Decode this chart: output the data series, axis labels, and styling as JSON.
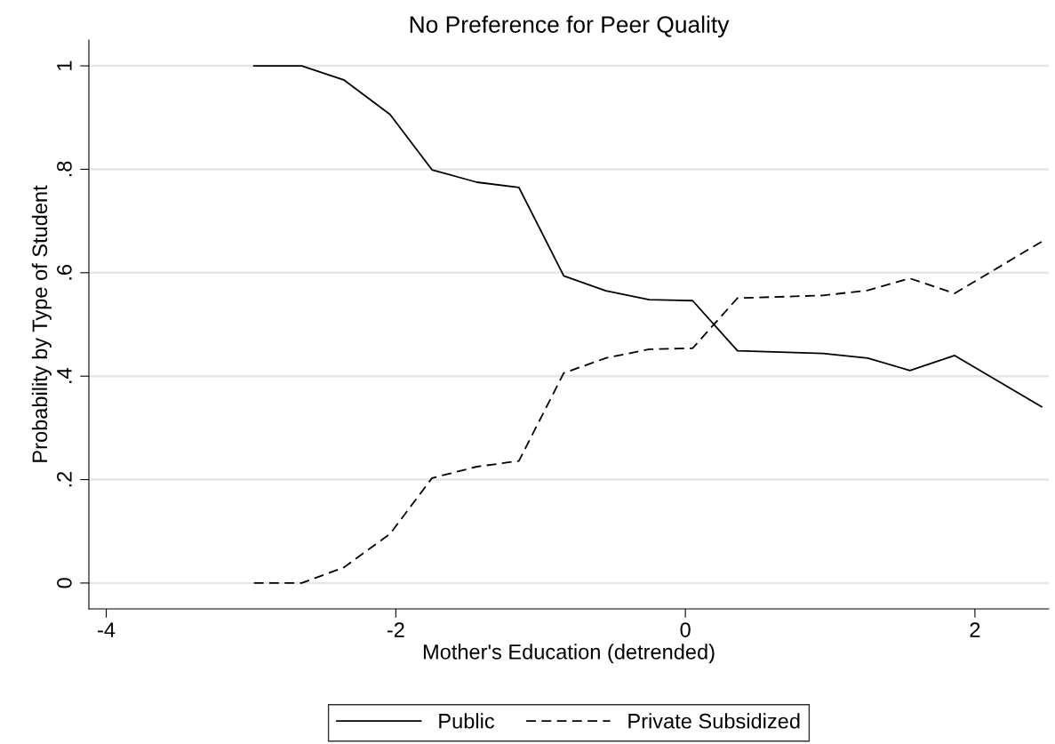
{
  "chart_data": {
    "type": "line",
    "title": "No Preference for Peer Quality",
    "xlabel": "Mother's Education (detrended)",
    "ylabel": "Probability by Type of Student",
    "x": [
      -2.98,
      -2.65,
      -2.36,
      -2.04,
      -1.75,
      -1.44,
      -1.15,
      -0.84,
      -0.55,
      -0.25,
      0.05,
      0.36,
      0.95,
      1.26,
      1.55,
      1.86,
      2.46
    ],
    "series": [
      {
        "name": "Public",
        "color": "#000000",
        "line_style": "solid",
        "values": [
          1,
          1,
          0.973,
          0.906,
          0.799,
          0.775,
          0.765,
          0.594,
          0.565,
          0.548,
          0.546,
          0.449,
          0.444,
          0.435,
          0.411,
          0.44,
          0.341
        ]
      },
      {
        "name": "Private Subsidized",
        "color": "#000000",
        "line_style": "dashed",
        "values": [
          0,
          0,
          0.03,
          0.095,
          0.203,
          0.225,
          0.236,
          0.406,
          0.435,
          0.452,
          0.454,
          0.551,
          0.556,
          0.566,
          0.589,
          0.56,
          0.66
        ]
      }
    ],
    "xlim": [
      -4.12,
      2.51
    ],
    "xticks": [
      -4,
      -2,
      0,
      2
    ],
    "ylim": [
      -0.05,
      1.05
    ],
    "yticks": [
      0,
      {
        "value": 0.2,
        "label": ".2"
      },
      {
        "value": 0.4,
        "label": ".4"
      },
      {
        "value": 0.6,
        "label": ".6"
      },
      {
        "value": 0.8,
        "label": ".8"
      },
      1
    ],
    "grid": "y",
    "legend": "bottom",
    "marker": "none"
  }
}
